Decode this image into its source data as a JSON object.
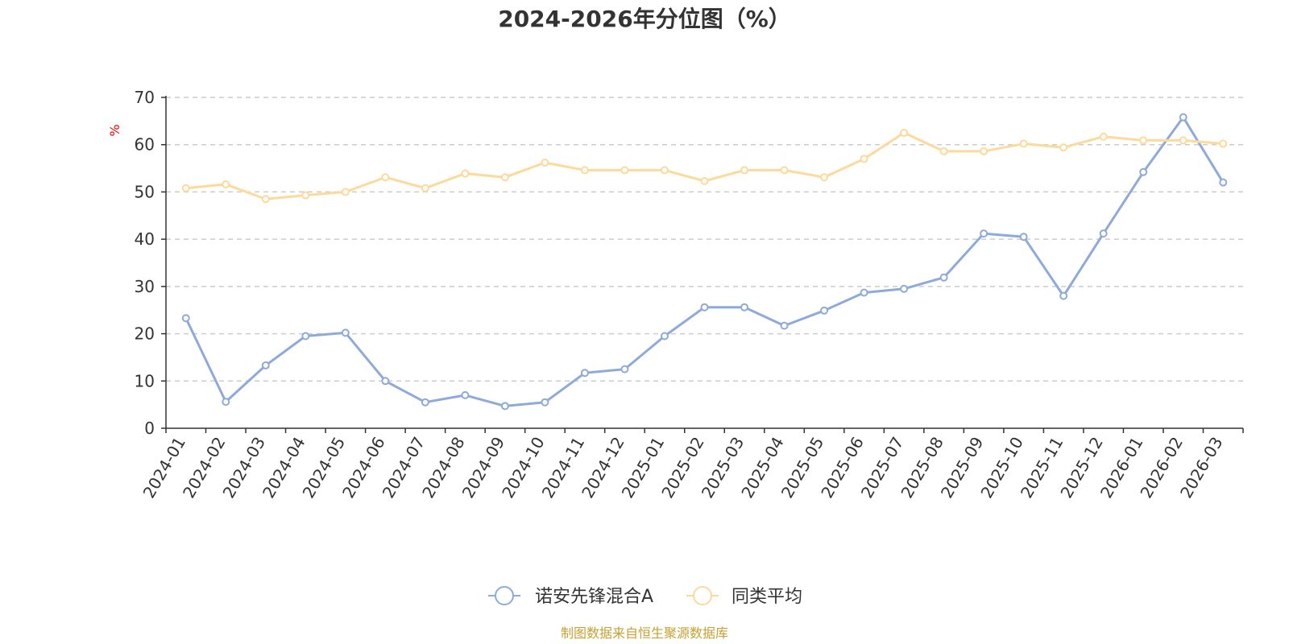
{
  "chart_data": {
    "type": "line",
    "title": "2024-2026年分位图（%）",
    "ylabel": "%",
    "xlabel": "",
    "ylim": [
      0,
      70
    ],
    "yticks": [
      0,
      10,
      20,
      30,
      40,
      50,
      60,
      70
    ],
    "grid": true,
    "legend_position": "bottom-center",
    "categories": [
      "2024-01",
      "2024-02",
      "2024-03",
      "2024-04",
      "2024-05",
      "2024-06",
      "2024-07",
      "2024-08",
      "2024-09",
      "2024-10",
      "2024-11",
      "2024-12",
      "2025-01",
      "2025-02",
      "2025-03",
      "2025-04",
      "2025-05",
      "2025-06",
      "2025-07",
      "2025-08",
      "2025-09",
      "2025-10",
      "2025-11",
      "2025-12",
      "2026-01",
      "2026-02",
      "2026-03"
    ],
    "series": [
      {
        "name": "诺安先锋混合A",
        "color": "#8eaadb",
        "values": [
          23.3,
          5.6,
          13.3,
          19.5,
          20.2,
          10.0,
          5.5,
          7.0,
          4.7,
          5.5,
          11.7,
          12.5,
          19.5,
          25.6,
          25.6,
          21.7,
          24.9,
          28.7,
          29.5,
          31.9,
          41.2,
          40.5,
          28.0,
          41.2,
          54.2,
          65.8,
          52.0
        ]
      },
      {
        "name": "同类平均",
        "color": "#fdd99b",
        "values": [
          50.8,
          51.6,
          48.5,
          49.3,
          50.0,
          53.1,
          50.8,
          53.9,
          53.1,
          56.2,
          54.6,
          54.6,
          54.6,
          52.3,
          54.6,
          54.6,
          53.1,
          57.0,
          62.5,
          58.6,
          58.6,
          60.2,
          59.4,
          61.7,
          60.9,
          60.9,
          60.2
        ]
      }
    ]
  },
  "source_text": "制图数据来自恒生聚源数据库",
  "colors": {
    "axis": "#333333",
    "grid": "#cccccc"
  }
}
